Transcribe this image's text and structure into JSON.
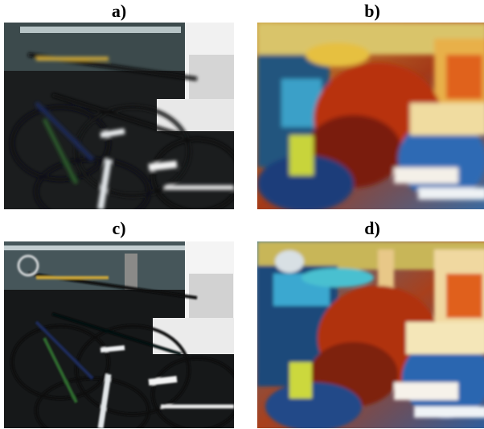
{
  "figure": {
    "panels": [
      {
        "label": "a)",
        "style": "photo-blurred"
      },
      {
        "label": "b)",
        "style": "stylized-painting"
      },
      {
        "label": "c)",
        "style": "photo-sharp"
      },
      {
        "label": "d)",
        "style": "stylized-painting-detailed"
      }
    ]
  }
}
